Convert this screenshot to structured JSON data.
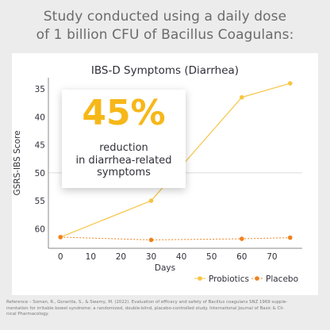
{
  "headline": {
    "line1": "Study conducted using a daily dose",
    "line2": "of 1 billion CFU of Bacillus Coagulans:"
  },
  "callout": {
    "value": "45%",
    "text_line1": "reduction",
    "text_line2": "in diarrhea-related",
    "text_line3": "symptoms"
  },
  "reference": {
    "line1": "Reference – Soman, R., Gorantla, S., & Swamy, M. (2022). Evaluation of efficacy and safety of Bacillus coagulans SNZ 1969 supple-",
    "line2": "mentation for irritable bowel syndrome: a randomized, double-blind, placebo-controlled study. International Journal of Basic & Cli-",
    "line3": "nical Pharmacology."
  },
  "colors": {
    "probiotics": "#f8c443",
    "placebo": "#f0821f",
    "text": "#2f2f3a",
    "grid": "#dcdcdc"
  },
  "chart_data": {
    "type": "line",
    "title": "IBS-D Symptoms (Diarrhea)",
    "xlabel": "Days",
    "ylabel": "GSRS-IBS Score",
    "xlim": [
      -4,
      80
    ],
    "ylim": [
      63.5,
      33
    ],
    "y_inverted": true,
    "xticks": [
      0,
      10,
      20,
      30,
      40,
      50,
      60,
      70
    ],
    "yticks": [
      35,
      40,
      45,
      50,
      55,
      60
    ],
    "reference_line_y": 50,
    "legend_position": "bottom",
    "series": [
      {
        "name": "Probiotics",
        "color": "#f8c443",
        "x": [
          0,
          30,
          60,
          76
        ],
        "y": [
          61.5,
          55,
          36.5,
          34
        ]
      },
      {
        "name": "Placebo",
        "color": "#f0821f",
        "x": [
          0,
          30,
          60,
          76
        ],
        "y": [
          61.5,
          62,
          61.8,
          61.6
        ]
      }
    ]
  }
}
